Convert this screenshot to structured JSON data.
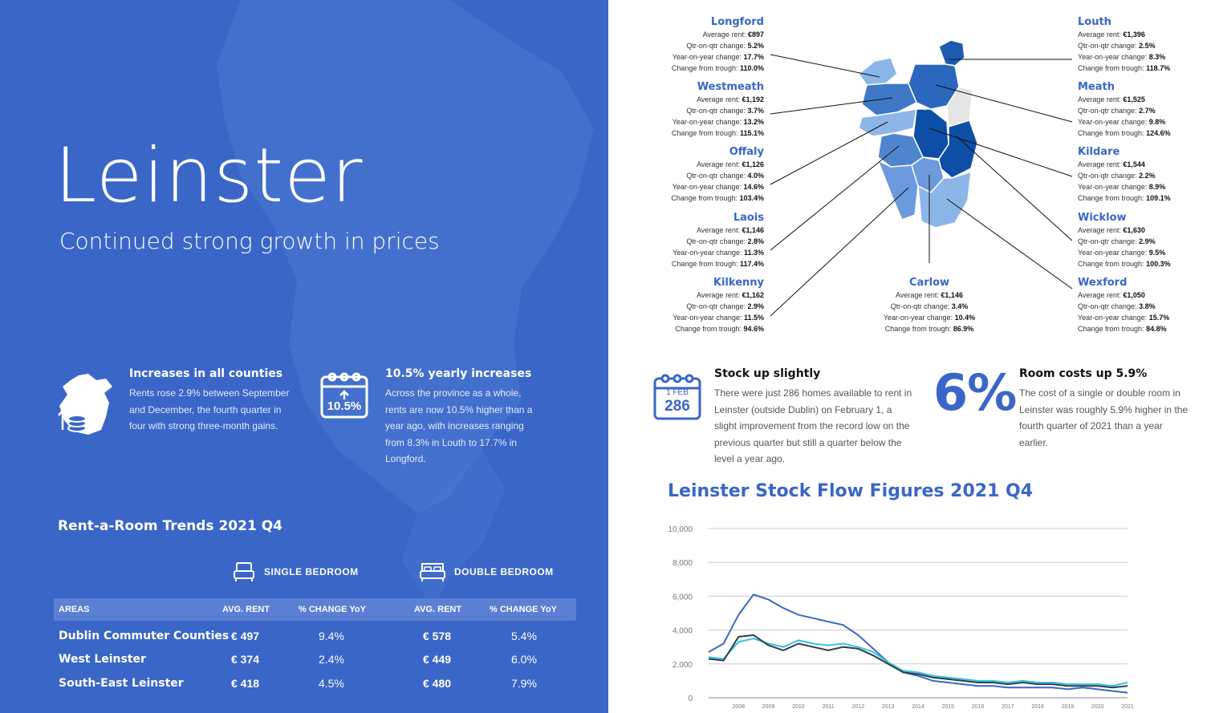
{
  "left": {
    "title": "Leinster",
    "subtitle": "Continued strong growth in prices",
    "features": [
      {
        "heading": "Increases in all counties",
        "text": "Rents rose 2.9% between September and December, the fourth quarter in four with strong three-month gains.",
        "icon": "map-coins-icon"
      },
      {
        "heading": "10.5% yearly increases",
        "text": "Across the province as a whole, rents are now 10.5% higher than a year ago, with increases ranging from 8.3% in Louth to 17.7% in Longford.",
        "icon": "calendar-up-icon",
        "icon_value": "10.5%"
      }
    ],
    "rent_a_room": {
      "title": "Rent-a-Room Trends 2021 Q4",
      "single_label": "SINGLE BEDROOM",
      "double_label": "DOUBLE BEDROOM",
      "columns": [
        "AREAS",
        "AVG. RENT",
        "% CHANGE YoY",
        "AVG. RENT",
        "% CHANGE YoY"
      ],
      "rows": [
        {
          "area": "Dublin Commuter Counties",
          "single_rent": "€ 497",
          "single_change": "9.4%",
          "double_rent": "€ 578",
          "double_change": "5.4%"
        },
        {
          "area": "West Leinster",
          "single_rent": "€ 374",
          "single_change": "2.4%",
          "double_rent": "€ 449",
          "double_change": "6.0%"
        },
        {
          "area": "South-East Leinster",
          "single_rent": "€ 418",
          "single_change": "4.5%",
          "double_rent": "€ 480",
          "double_change": "7.9%"
        }
      ]
    }
  },
  "labels": {
    "avg": "Average rent:",
    "qtr": "Qtr-on-qtr change:",
    "yoy": "Year-on-year change:",
    "trough": "Change from trough:"
  },
  "counties": [
    {
      "name": "Longford",
      "rent": "€897",
      "qtr": "5.2%",
      "yoy": "17.7%",
      "trough": "110.0%"
    },
    {
      "name": "Westmeath",
      "rent": "€1,192",
      "qtr": "3.7%",
      "yoy": "13.2%",
      "trough": "115.1%"
    },
    {
      "name": "Offaly",
      "rent": "€1,126",
      "qtr": "4.0%",
      "yoy": "14.6%",
      "trough": "103.4%"
    },
    {
      "name": "Laois",
      "rent": "€1,146",
      "qtr": "2.8%",
      "yoy": "11.3%",
      "trough": "117.4%"
    },
    {
      "name": "Kilkenny",
      "rent": "€1,162",
      "qtr": "2.9%",
      "yoy": "11.5%",
      "trough": "94.6%"
    },
    {
      "name": "Carlow",
      "rent": "€1,146",
      "qtr": "3.4%",
      "yoy": "10.4%",
      "trough": "86.9%"
    },
    {
      "name": "Louth",
      "rent": "€1,396",
      "qtr": "2.5%",
      "yoy": "8.3%",
      "trough": "118.7%"
    },
    {
      "name": "Meath",
      "rent": "€1,525",
      "qtr": "2.7%",
      "yoy": "9.8%",
      "trough": "124.6%"
    },
    {
      "name": "Kildare",
      "rent": "€1,544",
      "qtr": "2.2%",
      "yoy": "8.9%",
      "trough": "109.1%"
    },
    {
      "name": "Wicklow",
      "rent": "€1,630",
      "qtr": "2.9%",
      "yoy": "9.5%",
      "trough": "100.3%"
    },
    {
      "name": "Wexford",
      "rent": "€1,050",
      "qtr": "3.8%",
      "yoy": "15.7%",
      "trough": "84.8%"
    }
  ],
  "right": {
    "stock": {
      "heading": "Stock up slightly",
      "text": "There were just 286 homes available to rent in Leinster (outside Dublin) on February 1, a slight improvement from the record low on the previous quarter but still a quarter below the level a year ago.",
      "icon": "calendar-date-icon",
      "icon_month": "1 FEB",
      "icon_value": "286"
    },
    "room": {
      "big": "6%",
      "heading": "Room costs up 5.9%",
      "text": "The cost of a single or double room in Leinster was roughly 5.9% higher in the fourth quarter of 2021 than a year earlier."
    }
  },
  "colors": {
    "panel": "#3a66c8",
    "accent": "#3a66c8",
    "series_blue": "#3a66c8",
    "series_dark": "#2d3e4a",
    "series_cyan": "#35c3e0"
  },
  "chart_data": {
    "type": "line",
    "title": "Leinster Stock Flow Figures 2021 Q4",
    "ylim": [
      0,
      10000
    ],
    "yticks": [
      "10,000",
      "8,000",
      "6,000",
      "4,000",
      "2,000",
      "0"
    ],
    "xticks": [
      "2008",
      "2009",
      "2010",
      "2011",
      "2012",
      "2013",
      "2014",
      "2015",
      "2016",
      "2017",
      "2018",
      "2019",
      "2020",
      "2021"
    ],
    "x": [
      2007.5,
      2008,
      2008.5,
      2009,
      2009.5,
      2010,
      2010.5,
      2011,
      2011.5,
      2012,
      2012.5,
      2013,
      2013.5,
      2014,
      2014.5,
      2015,
      2015.5,
      2016,
      2016.5,
      2017,
      2017.5,
      2018,
      2018.5,
      2019,
      2019.5,
      2020,
      2020.5,
      2021,
      2021.5
    ],
    "series": [
      {
        "values": [
          2700,
          3200,
          4900,
          6100,
          5800,
          5300,
          4900,
          4700,
          4500,
          4300,
          3700,
          2900,
          2100,
          1500,
          1300,
          1000,
          900,
          800,
          700,
          700,
          600,
          600,
          600,
          600,
          500,
          600,
          500,
          400,
          300
        ]
      },
      {
        "values": [
          2400,
          2300,
          3300,
          3500,
          3200,
          3000,
          3400,
          3200,
          3100,
          3200,
          3000,
          2700,
          2100,
          1600,
          1500,
          1300,
          1200,
          1100,
          1000,
          1000,
          900,
          1000,
          900,
          900,
          800,
          800,
          800,
          700,
          900
        ]
      },
      {
        "values": [
          2300,
          2200,
          3600,
          3700,
          3100,
          2800,
          3200,
          3000,
          2800,
          3000,
          2900,
          2500,
          2000,
          1500,
          1400,
          1200,
          1100,
          1000,
          900,
          900,
          800,
          900,
          800,
          800,
          700,
          700,
          700,
          600,
          700
        ]
      }
    ]
  }
}
